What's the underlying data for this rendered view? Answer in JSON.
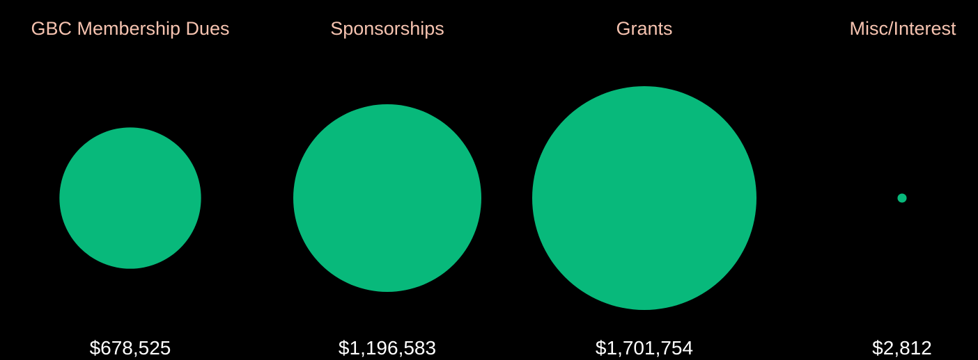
{
  "chart_data": {
    "type": "bubble",
    "categories": [
      "GBC Membership Dues",
      "Sponsorships",
      "Grants",
      "Misc/Interest"
    ],
    "values": [
      678525,
      1196583,
      1701754,
      2812
    ],
    "value_labels": [
      "$678,525",
      "$1,196,583",
      "$1,701,754",
      "$2,812"
    ],
    "title": "",
    "legend": "none",
    "grid": false,
    "colors": {
      "background": "#000000",
      "bubble": "#08b97b",
      "category_text": "#f6c3b0",
      "value_text": "#ffffff"
    }
  }
}
